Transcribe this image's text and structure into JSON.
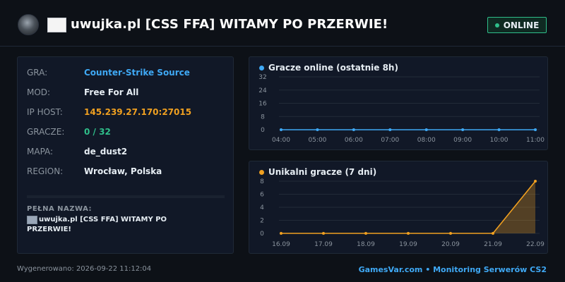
{
  "header": {
    "title": "uwujka.pl [CSS FFA] WITAMY PO PRZERWIE!",
    "status": "ONLINE",
    "status_color": "#2fbf8a"
  },
  "info": {
    "rows": [
      {
        "label": "GRA:",
        "value": "Counter-Strike Source"
      },
      {
        "label": "MOD:",
        "value": "Free For All"
      },
      {
        "label": "IP HOST:",
        "value": "145.239.27.170:27015"
      },
      {
        "label": "GRACZE:",
        "value": "0 / 32"
      },
      {
        "label": "MAPA:",
        "value": "de_dust2"
      },
      {
        "label": "REGION:",
        "value": "Wrocław, Polska"
      }
    ],
    "full_name_label": "PEŁNA NAZWA:",
    "full_name": "uwujka.pl [CSS FFA] WITAMY PO PRZERWIE!"
  },
  "chart_data": [
    {
      "type": "line",
      "title": "Gracze online (ostatnie 8h)",
      "color": "#3fa9f5",
      "categories": [
        "04:00",
        "05:00",
        "06:00",
        "07:00",
        "08:00",
        "09:00",
        "10:00",
        "11:00"
      ],
      "values": [
        0,
        0,
        0,
        0,
        0,
        0,
        0,
        0
      ],
      "y_ticks": [
        0,
        8,
        16,
        24,
        32
      ],
      "ylim": [
        0,
        32
      ],
      "grid": true
    },
    {
      "type": "area",
      "title": "Unikalni gracze (7 dni)",
      "color": "#f0a020",
      "categories": [
        "16.09",
        "17.09",
        "18.09",
        "19.09",
        "20.09",
        "21.09",
        "22.09"
      ],
      "values": [
        0,
        0,
        0,
        0,
        0,
        0,
        8
      ],
      "y_ticks": [
        0,
        2,
        4,
        6,
        8
      ],
      "ylim": [
        0,
        8
      ],
      "grid": true
    }
  ],
  "footer": {
    "generated": "Wygenerowano: 2026-09-22 11:12:04",
    "brand": "GamesVar.com • Monitoring Serwerów CS2"
  }
}
